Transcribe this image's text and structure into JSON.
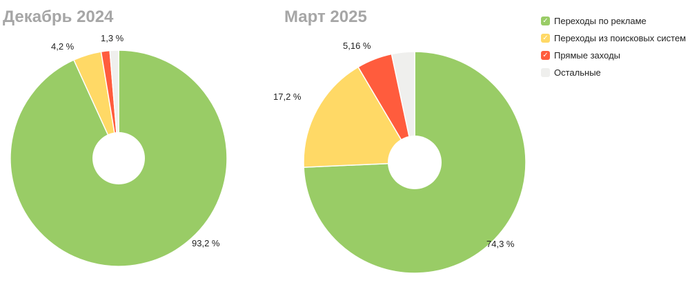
{
  "legend": {
    "items": [
      {
        "label": "Переходы по рекламе",
        "color": "#99cc66",
        "icon": "check-icon"
      },
      {
        "label": "Переходы из поисковых систем",
        "color": "#ffd966",
        "icon": "check-icon"
      },
      {
        "label": "Прямые заходы",
        "color": "#ff5c3d",
        "icon": "check-icon"
      },
      {
        "label": "Остальные",
        "color": "#efefed",
        "icon": "check-icon"
      }
    ]
  },
  "chart_data": [
    {
      "type": "pie",
      "title": "Декабрь 2024",
      "categories": [
        "Переходы по рекламе",
        "Переходы из поисковых систем",
        "Прямые заходы",
        "Остальные"
      ],
      "values": [
        93.2,
        4.2,
        1.3,
        1.3
      ],
      "data_labels": [
        "93,2 %",
        "4,2 %",
        "1,3 %",
        ""
      ],
      "colors": [
        "#99cc66",
        "#ffd966",
        "#ff5c3d",
        "#efefed"
      ]
    },
    {
      "type": "pie",
      "title": "Март 2025",
      "categories": [
        "Переходы по рекламе",
        "Переходы из поисковых систем",
        "Прямые заходы",
        "Остальные"
      ],
      "values": [
        74.3,
        17.2,
        5.16,
        3.34
      ],
      "data_labels": [
        "74,3 %",
        "17,2 %",
        "5,16 %",
        ""
      ],
      "colors": [
        "#99cc66",
        "#ffd966",
        "#ff5c3d",
        "#efefed"
      ]
    }
  ]
}
